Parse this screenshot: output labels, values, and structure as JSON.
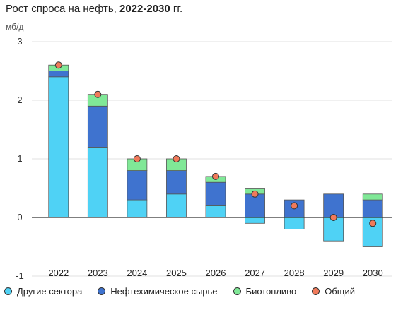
{
  "title_main": "Рост спроса на нефть, ",
  "title_bold": "2022-2030",
  "title_suffix": " гг.",
  "unit": "мб/д",
  "chart_data": {
    "type": "bar",
    "stacked": true,
    "categories": [
      "2022",
      "2023",
      "2024",
      "2025",
      "2026",
      "2027",
      "2028",
      "2029",
      "2030"
    ],
    "series": [
      {
        "name": "Другие сектора",
        "color": "#4fd2f5",
        "values": [
          2.4,
          1.2,
          0.3,
          0.4,
          0.2,
          -0.1,
          -0.2,
          -0.4,
          -0.5
        ]
      },
      {
        "name": "Нефтехимическое сырье",
        "color": "#3f73cf",
        "values": [
          0.1,
          0.7,
          0.5,
          0.4,
          0.4,
          0.4,
          0.3,
          0.4,
          0.3
        ]
      },
      {
        "name": "Биотопливо",
        "color": "#80e897",
        "values": [
          0.1,
          0.2,
          0.2,
          0.2,
          0.1,
          0.1,
          0.0,
          0.0,
          0.1
        ]
      }
    ],
    "total": {
      "name": "Общий",
      "color": "#f07a5a",
      "values": [
        2.6,
        2.1,
        1.0,
        1.0,
        0.7,
        0.4,
        0.2,
        0.0,
        -0.1
      ]
    },
    "ylim": [
      -1,
      3
    ],
    "yticks": [
      -1,
      0,
      1,
      2,
      3
    ],
    "grid": true,
    "legend_position": "bottom"
  }
}
